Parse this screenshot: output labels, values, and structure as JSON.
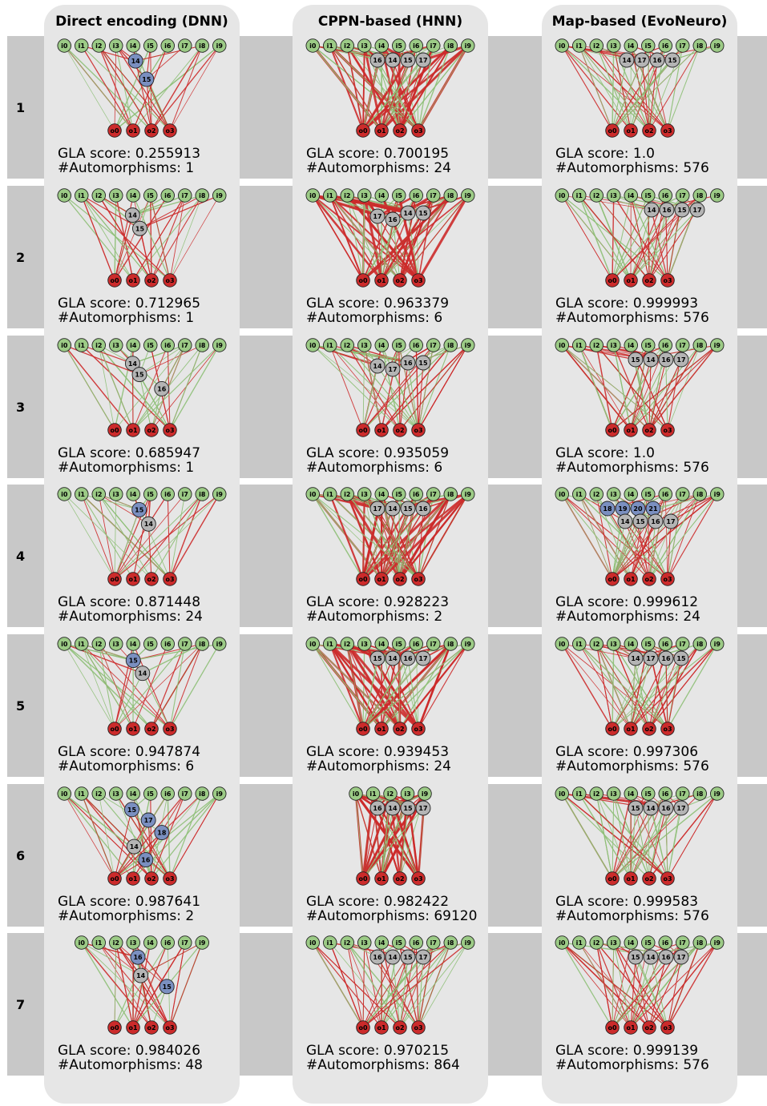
{
  "columns": [
    {
      "title": "Direct encoding (DNN)"
    },
    {
      "title": "CPPN-based (HNN)"
    },
    {
      "title": "Map-based (EvoNeuro)"
    }
  ],
  "colors": {
    "input": "#9ccb86",
    "output": "#cc2b2b",
    "hidden": "#b4b4b4",
    "hidden_blue": "#7a8fc0",
    "edge_red": "#cc2b2b",
    "edge_green": "#8dbf76",
    "panel": "#e6e6e6",
    "band": "#c8c8c8"
  },
  "score_label": "GLA score: ",
  "automorphisms_label": "#Automorphisms: ",
  "rows": [
    {
      "label": "1",
      "cells": [
        {
          "score": "0.255913",
          "automorphisms": "1",
          "inputs": [
            "i0",
            "i1",
            "i2",
            "i3",
            "i4",
            "i5",
            "i6",
            "i7",
            "i8",
            "i9"
          ],
          "hidden": [
            {
              "id": "14",
              "kind": "blue"
            },
            {
              "id": "15",
              "kind": "blue"
            }
          ],
          "density": "low"
        },
        {
          "score": "0.700195",
          "automorphisms": "24",
          "inputs": [
            "i0",
            "i1",
            "i2",
            "i3",
            "i4",
            "i5",
            "i6",
            "i7",
            "i8",
            "i9"
          ],
          "hidden": [
            {
              "id": "16",
              "kind": "gray"
            },
            {
              "id": "14",
              "kind": "gray"
            },
            {
              "id": "15",
              "kind": "gray"
            },
            {
              "id": "17",
              "kind": "gray"
            }
          ],
          "density": "high"
        },
        {
          "score": "1.0",
          "automorphisms": "576",
          "inputs": [
            "i0",
            "i1",
            "i2",
            "i3",
            "i4",
            "i5",
            "i6",
            "i7",
            "i8",
            "i9"
          ],
          "hidden": [
            {
              "id": "14",
              "kind": "gray"
            },
            {
              "id": "17",
              "kind": "gray"
            },
            {
              "id": "16",
              "kind": "gray"
            },
            {
              "id": "15",
              "kind": "gray"
            }
          ],
          "density": "medium"
        }
      ]
    },
    {
      "label": "2",
      "cells": [
        {
          "score": "0.712965",
          "automorphisms": "1",
          "inputs": [
            "i0",
            "i1",
            "i2",
            "i3",
            "i4",
            "i5",
            "i6",
            "i7",
            "i8",
            "i9"
          ],
          "hidden": [
            {
              "id": "14",
              "kind": "gray"
            },
            {
              "id": "15",
              "kind": "gray"
            }
          ],
          "density": "low"
        },
        {
          "score": "0.963379",
          "automorphisms": "6",
          "inputs": [
            "i0",
            "i1",
            "i2",
            "i3",
            "i4",
            "i5",
            "i6",
            "i7",
            "i8",
            "i9"
          ],
          "hidden": [
            {
              "id": "17",
              "kind": "gray"
            },
            {
              "id": "16",
              "kind": "gray"
            },
            {
              "id": "14",
              "kind": "gray"
            },
            {
              "id": "15",
              "kind": "gray"
            }
          ],
          "density": "high"
        },
        {
          "score": "0.999993",
          "automorphisms": "576",
          "inputs": [
            "i0",
            "i1",
            "i2",
            "i3",
            "i4",
            "i5",
            "i6",
            "i7",
            "i8",
            "i9"
          ],
          "hidden": [
            {
              "id": "14",
              "kind": "gray"
            },
            {
              "id": "16",
              "kind": "gray"
            },
            {
              "id": "15",
              "kind": "gray"
            },
            {
              "id": "17",
              "kind": "gray"
            }
          ],
          "density": "medium"
        }
      ]
    },
    {
      "label": "3",
      "cells": [
        {
          "score": "0.685947",
          "automorphisms": "1",
          "inputs": [
            "i0",
            "i1",
            "i2",
            "i3",
            "i4",
            "i5",
            "i6",
            "i7",
            "i8",
            "i9"
          ],
          "hidden": [
            {
              "id": "14",
              "kind": "gray"
            },
            {
              "id": "15",
              "kind": "gray"
            },
            {
              "id": "16",
              "kind": "gray"
            }
          ],
          "density": "low"
        },
        {
          "score": "0.935059",
          "automorphisms": "6",
          "inputs": [
            "i0",
            "i1",
            "i2",
            "i3",
            "i4",
            "i5",
            "i6",
            "i7",
            "i8",
            "i9"
          ],
          "hidden": [
            {
              "id": "14",
              "kind": "gray"
            },
            {
              "id": "17",
              "kind": "gray"
            },
            {
              "id": "16",
              "kind": "gray"
            },
            {
              "id": "15",
              "kind": "gray"
            }
          ],
          "density": "medium"
        },
        {
          "score": "1.0",
          "automorphisms": "576",
          "inputs": [
            "i0",
            "i1",
            "i2",
            "i3",
            "i4",
            "i5",
            "i6",
            "i7",
            "i8",
            "i9"
          ],
          "hidden": [
            {
              "id": "15",
              "kind": "gray"
            },
            {
              "id": "14",
              "kind": "gray"
            },
            {
              "id": "16",
              "kind": "gray"
            },
            {
              "id": "17",
              "kind": "gray"
            }
          ],
          "density": "medium"
        }
      ]
    },
    {
      "label": "4",
      "cells": [
        {
          "score": "0.871448",
          "automorphisms": "24",
          "inputs": [
            "i0",
            "i1",
            "i2",
            "i3",
            "i4",
            "i5",
            "i6",
            "i7",
            "i8",
            "i9"
          ],
          "hidden": [
            {
              "id": "15",
              "kind": "blue"
            },
            {
              "id": "14",
              "kind": "gray"
            }
          ],
          "density": "low"
        },
        {
          "score": "0.928223",
          "automorphisms": "2",
          "inputs": [
            "i0",
            "i1",
            "i2",
            "i3",
            "i4",
            "i5",
            "i6",
            "i7",
            "i8",
            "i9"
          ],
          "hidden": [
            {
              "id": "17",
              "kind": "gray"
            },
            {
              "id": "14",
              "kind": "gray"
            },
            {
              "id": "15",
              "kind": "gray"
            },
            {
              "id": "16",
              "kind": "gray"
            }
          ],
          "density": "high"
        },
        {
          "score": "0.999612",
          "automorphisms": "24",
          "inputs": [
            "i0",
            "i1",
            "i2",
            "i3",
            "i4",
            "i5",
            "i6",
            "i7",
            "i8",
            "i9"
          ],
          "hidden": [
            {
              "id": "18",
              "kind": "blue"
            },
            {
              "id": "19",
              "kind": "blue"
            },
            {
              "id": "20",
              "kind": "blue"
            },
            {
              "id": "21",
              "kind": "blue"
            },
            {
              "id": "14",
              "kind": "gray"
            },
            {
              "id": "15",
              "kind": "gray"
            },
            {
              "id": "16",
              "kind": "gray"
            },
            {
              "id": "17",
              "kind": "gray"
            }
          ],
          "density": "medium"
        }
      ]
    },
    {
      "label": "5",
      "cells": [
        {
          "score": "0.947874",
          "automorphisms": "6",
          "inputs": [
            "i0",
            "i1",
            "i2",
            "i3",
            "i4",
            "i5",
            "i6",
            "i7",
            "i8",
            "i9"
          ],
          "hidden": [
            {
              "id": "15",
              "kind": "blue"
            },
            {
              "id": "14",
              "kind": "gray"
            }
          ],
          "density": "low"
        },
        {
          "score": "0.939453",
          "automorphisms": "24",
          "inputs": [
            "i0",
            "i1",
            "i2",
            "i3",
            "i4",
            "i5",
            "i6",
            "i7",
            "i8",
            "i9"
          ],
          "hidden": [
            {
              "id": "15",
              "kind": "gray"
            },
            {
              "id": "14",
              "kind": "gray"
            },
            {
              "id": "16",
              "kind": "gray"
            },
            {
              "id": "17",
              "kind": "gray"
            }
          ],
          "density": "high"
        },
        {
          "score": "0.997306",
          "automorphisms": "576",
          "inputs": [
            "i0",
            "i1",
            "i2",
            "i3",
            "i4",
            "i5",
            "i6",
            "i7",
            "i8",
            "i9"
          ],
          "hidden": [
            {
              "id": "14",
              "kind": "gray"
            },
            {
              "id": "17",
              "kind": "gray"
            },
            {
              "id": "16",
              "kind": "gray"
            },
            {
              "id": "15",
              "kind": "gray"
            }
          ],
          "density": "medium"
        }
      ]
    },
    {
      "label": "6",
      "cells": [
        {
          "score": "0.987641",
          "automorphisms": "2",
          "inputs": [
            "i0",
            "i1",
            "i2",
            "i3",
            "i4",
            "i5",
            "i6",
            "i7",
            "i8",
            "i9"
          ],
          "hidden": [
            {
              "id": "15",
              "kind": "blue"
            },
            {
              "id": "17",
              "kind": "blue"
            },
            {
              "id": "18",
              "kind": "blue"
            },
            {
              "id": "14",
              "kind": "gray"
            },
            {
              "id": "16",
              "kind": "blue"
            }
          ],
          "density": "low"
        },
        {
          "score": "0.982422",
          "automorphisms": "69120",
          "inputs": [
            "i0",
            "i1",
            "i2",
            "i3",
            "i9"
          ],
          "hidden": [
            {
              "id": "16",
              "kind": "gray"
            },
            {
              "id": "14",
              "kind": "gray"
            },
            {
              "id": "15",
              "kind": "gray"
            },
            {
              "id": "17",
              "kind": "gray"
            }
          ],
          "density": "high"
        },
        {
          "score": "0.999583",
          "automorphisms": "576",
          "inputs": [
            "i0",
            "i1",
            "i2",
            "i3",
            "i4",
            "i5",
            "i6",
            "i7",
            "i8",
            "i9"
          ],
          "hidden": [
            {
              "id": "15",
              "kind": "gray"
            },
            {
              "id": "14",
              "kind": "gray"
            },
            {
              "id": "16",
              "kind": "gray"
            },
            {
              "id": "17",
              "kind": "gray"
            }
          ],
          "density": "medium"
        }
      ]
    },
    {
      "label": "7",
      "cells": [
        {
          "score": "0.984026",
          "automorphisms": "48",
          "inputs": [
            "i0",
            "i1",
            "i2",
            "i3",
            "i4",
            "i6",
            "i7",
            "i9"
          ],
          "hidden": [
            {
              "id": "16",
              "kind": "blue"
            },
            {
              "id": "14",
              "kind": "gray"
            },
            {
              "id": "15",
              "kind": "blue"
            }
          ],
          "density": "low"
        },
        {
          "score": "0.970215",
          "automorphisms": "864",
          "inputs": [
            "i0",
            "i1",
            "i2",
            "i3",
            "i4",
            "i5",
            "i6",
            "i7",
            "i8",
            "i9"
          ],
          "hidden": [
            {
              "id": "16",
              "kind": "gray"
            },
            {
              "id": "14",
              "kind": "gray"
            },
            {
              "id": "15",
              "kind": "gray"
            },
            {
              "id": "17",
              "kind": "gray"
            }
          ],
          "density": "medium"
        },
        {
          "score": "0.999139",
          "automorphisms": "576",
          "inputs": [
            "i0",
            "i1",
            "i2",
            "i3",
            "i4",
            "i5",
            "i6",
            "i7",
            "i8",
            "i9"
          ],
          "hidden": [
            {
              "id": "15",
              "kind": "gray"
            },
            {
              "id": "14",
              "kind": "gray"
            },
            {
              "id": "16",
              "kind": "gray"
            },
            {
              "id": "17",
              "kind": "gray"
            }
          ],
          "density": "medium"
        }
      ]
    }
  ]
}
